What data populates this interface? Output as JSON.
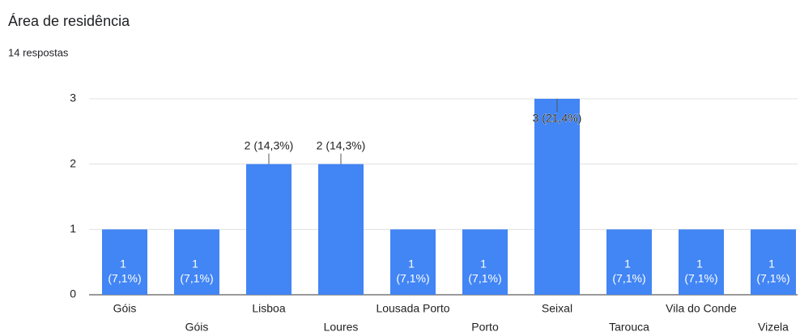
{
  "chart_data": {
    "type": "bar",
    "title": "Área de residência",
    "subtitle": "14 respostas",
    "categories": [
      "Góis",
      "Góis",
      "Lisboa",
      "Loures",
      "Lousada Porto",
      "Porto",
      "Seixal",
      "Tarouca",
      "Vila do Conde",
      "Vizela"
    ],
    "values": [
      1,
      1,
      2,
      2,
      1,
      1,
      3,
      1,
      1,
      1
    ],
    "value_labels": [
      "1 (7,1%)",
      "1 (7,1%)",
      "2 (14,3%)",
      "2 (14,3%)",
      "1 (7,1%)",
      "1 (7,1%)",
      "3 (21,4%)",
      "1 (7,1%)",
      "1 (7,1%)",
      "1 (7,1%)"
    ],
    "color": "#4285f4",
    "ylim": [
      0,
      3
    ],
    "yticks": [
      0,
      1,
      2,
      3
    ],
    "grid": true
  }
}
